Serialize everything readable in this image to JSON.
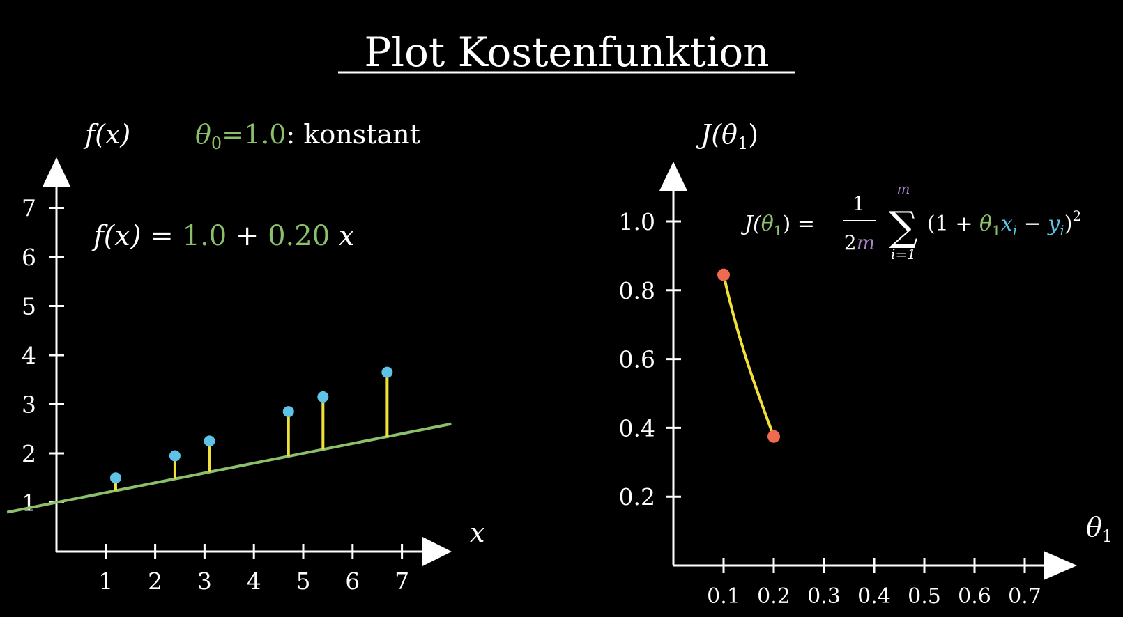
{
  "title": "Plot Kostenfunktion",
  "colors": {
    "background": "#000000",
    "foreground": "#ffffff",
    "theta": "#8cbf6b",
    "point": "#5ec3e6",
    "residual": "#f2e03a",
    "cost_curve": "#f2e03a",
    "cost_point": "#f06a4f",
    "m_color": "#a884c4",
    "x_color": "#5ec3e6"
  },
  "left_panel": {
    "y_axis_label": "f(x)",
    "x_axis_label": "x",
    "theta0_label": "θ",
    "theta0_sub": "0",
    "theta0_eq": "=1.0",
    "theta0_suffix": ": konstant",
    "eq_prefix": "f(x) =",
    "eq_intercept": "1.0",
    "eq_plus": "+",
    "eq_slope": "0.20",
    "eq_var": "x"
  },
  "right_panel": {
    "y_axis_label_main": "J(θ",
    "y_axis_label_sub": "1",
    "y_axis_label_close": ")",
    "x_axis_label": "θ",
    "x_axis_label_sub": "1",
    "formula": {
      "lhs_J": "J(",
      "lhs_theta": "θ",
      "lhs_sub": "1",
      "lhs_close": ") =",
      "frac_num": "1",
      "frac_den_2": "2",
      "frac_den_m": "m",
      "sum_top": "m",
      "sum_bottom": "i=1",
      "sum_symbol": "∑",
      "open": "(1 +",
      "theta": "θ",
      "theta_sub": "1",
      "x": "x",
      "x_sub": "i",
      "minus": "−",
      "y": "y",
      "y_sub": "i",
      "close": ")",
      "power": "2"
    }
  },
  "chart_data": [
    {
      "type": "scatter",
      "x_ticks": [
        "1",
        "2",
        "3",
        "4",
        "5",
        "6",
        "7"
      ],
      "y_ticks": [
        "1",
        "2",
        "3",
        "4",
        "5",
        "6",
        "7"
      ],
      "xlim": [
        -1,
        8
      ],
      "ylim": [
        0,
        8
      ],
      "points": [
        {
          "x": 1.2,
          "y": 1.5
        },
        {
          "x": 2.4,
          "y": 1.95
        },
        {
          "x": 3.1,
          "y": 2.25
        },
        {
          "x": 4.7,
          "y": 2.85
        },
        {
          "x": 5.4,
          "y": 3.15
        },
        {
          "x": 6.7,
          "y": 3.65
        }
      ],
      "fit_line": {
        "intercept": 1.0,
        "slope": 0.2,
        "x_range": [
          -1,
          8
        ]
      },
      "residuals": true
    },
    {
      "type": "line",
      "x_ticks": [
        "0.1",
        "0.2",
        "0.3",
        "0.4",
        "0.5",
        "0.6",
        "0.7"
      ],
      "y_ticks": [
        "0.2",
        "0.4",
        "0.6",
        "0.8",
        "1.0"
      ],
      "xlim": [
        0,
        0.8
      ],
      "ylim": [
        0,
        1.15
      ],
      "series": [
        {
          "x": [
            0.1,
            0.2
          ],
          "y": [
            0.845,
            0.375
          ]
        }
      ]
    }
  ]
}
